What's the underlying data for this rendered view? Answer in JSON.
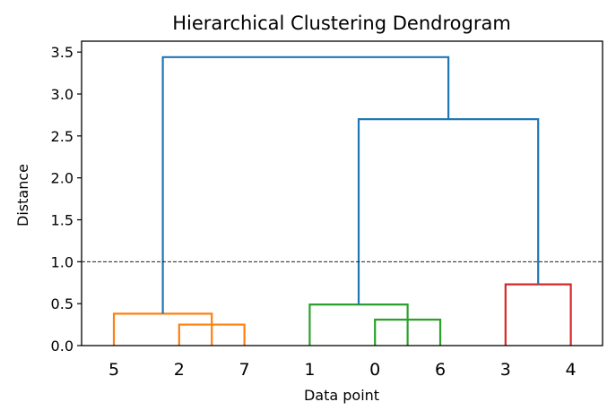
{
  "chart_data": {
    "type": "dendrogram",
    "title": "Hierarchical Clustering Dendrogram",
    "xlabel": "Data point",
    "ylabel": "Distance",
    "ylim": [
      0,
      3.63
    ],
    "yticks": [
      "0.0",
      "0.5",
      "1.0",
      "1.5",
      "2.0",
      "2.5",
      "3.0",
      "3.5"
    ],
    "leaf_order": [
      "5",
      "2",
      "7",
      "1",
      "0",
      "6",
      "3",
      "4"
    ],
    "threshold": 1.0,
    "links": [
      {
        "left": 1,
        "right": 2,
        "height": 0.25,
        "color": "#ff7f0e"
      },
      {
        "left": 0,
        "right": 1.5,
        "height": 0.38,
        "color": "#ff7f0e"
      },
      {
        "left": 4,
        "right": 5,
        "height": 0.31,
        "color": "#2ca02c"
      },
      {
        "left": 3,
        "right": 4.5,
        "height": 0.49,
        "color": "#2ca02c"
      },
      {
        "left": 6,
        "right": 7,
        "height": 0.73,
        "color": "#d62728"
      },
      {
        "left": 3.75,
        "right": 6.5,
        "height": 2.7,
        "color": "#1f77b4",
        "left_base": 0.49,
        "right_base": 0.73
      },
      {
        "left": 0.75,
        "right": 5.125,
        "height": 3.44,
        "color": "#1f77b4",
        "left_base": 0.38,
        "right_base": 2.7
      }
    ]
  }
}
